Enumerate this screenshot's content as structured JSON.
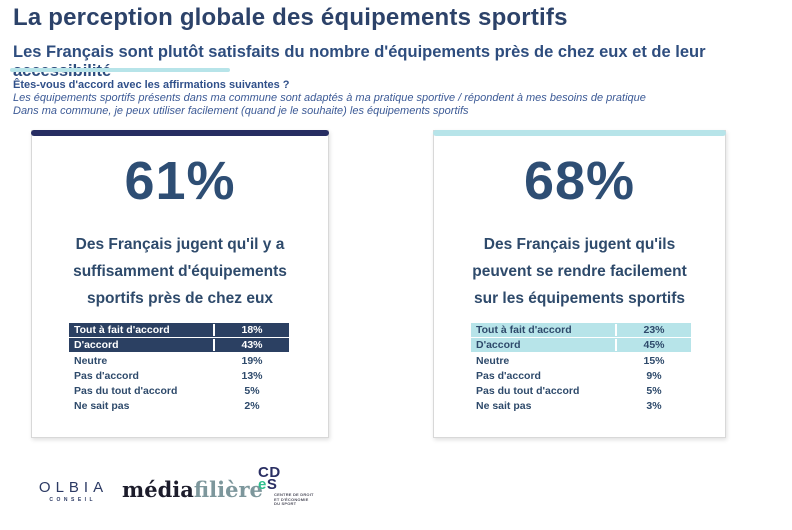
{
  "page": {
    "title": "La perception globale des équipements sportifs",
    "subtitle": "Les Français sont plutôt satisfaits du nombre d'équipements près de chez eux et de leur accessibilité",
    "intro": {
      "question": "Êtes-vous d'accord avec les affirmations suivantes ?",
      "statement1": "Les équipements sportifs présents dans ma commune sont adaptés à ma pratique sportive / répondent à mes besoins de pratique",
      "statement2": "Dans ma commune, je peux utiliser facilement (quand je le souhaite) les équipements sportifs"
    }
  },
  "colors": {
    "accent_navy": "#272d62",
    "accent_teal": "#b7e4e9",
    "highlight_navy": "#2b4062",
    "text_navy": "#2e4a6b"
  },
  "cards": [
    {
      "percent": "61%",
      "description_lines": [
        "Des Français jugent qu'il y a",
        "suffisamment d'équipements",
        "sportifs près de chez eux"
      ],
      "accent_color": "#272d62",
      "highlight_bg": "#2b4062",
      "highlight_text": "#ffffff",
      "table": {
        "rows": [
          {
            "label": "Tout à fait d'accord",
            "value": "18%",
            "highlight": true
          },
          {
            "label": "D'accord",
            "value": "43%",
            "highlight": true
          },
          {
            "label": "Neutre",
            "value": "19%",
            "highlight": false
          },
          {
            "label": "Pas d'accord",
            "value": "13%",
            "highlight": false
          },
          {
            "label": "Pas du tout d'accord",
            "value": "5%",
            "highlight": false
          },
          {
            "label": "Ne sait pas",
            "value": "2%",
            "highlight": false
          }
        ]
      }
    },
    {
      "percent": "68%",
      "description_lines": [
        "Des Français jugent qu'ils",
        "peuvent se rendre facilement",
        "sur les équipements sportifs"
      ],
      "accent_color": "#b7e4e9",
      "highlight_bg": "#b7e4e9",
      "highlight_text": "#2e4a6b",
      "table": {
        "rows": [
          {
            "label": "Tout à fait d'accord",
            "value": "23%",
            "highlight": true
          },
          {
            "label": "D'accord",
            "value": "45%",
            "highlight": true
          },
          {
            "label": "Neutre",
            "value": "15%",
            "highlight": false
          },
          {
            "label": "Pas d'accord",
            "value": "9%",
            "highlight": false
          },
          {
            "label": "Pas du tout d'accord",
            "value": "5%",
            "highlight": false
          },
          {
            "label": "Ne sait pas",
            "value": "3%",
            "highlight": false
          }
        ]
      }
    }
  ],
  "footer": {
    "olbia": {
      "name": "OLBIA",
      "tagline": "CONSEIL"
    },
    "mediafiliere": {
      "part1": "média",
      "part2": "filière"
    },
    "cdes": {
      "monogram_line1": "CD",
      "monogram_e": "e",
      "monogram_s": "S",
      "subtext_line1": "CENTRE DE DROIT",
      "subtext_line2": "ET D'ÉCONOMIE",
      "subtext_line3": "DU SPORT"
    }
  },
  "chart_data": {
    "type": "table",
    "title": "La perception globale des équipements sportifs",
    "question": "Êtes-vous d'accord avec les affirmations suivantes ?",
    "categories": [
      "Tout à fait d'accord",
      "D'accord",
      "Neutre",
      "Pas d'accord",
      "Pas du tout d'accord",
      "Ne sait pas"
    ],
    "series": [
      {
        "name": "Les équipements sportifs présents dans ma commune sont adaptés à ma pratique sportive / répondent à mes besoins de pratique",
        "headline_percent": 61,
        "values": [
          18,
          43,
          19,
          13,
          5,
          2
        ]
      },
      {
        "name": "Dans ma commune, je peux utiliser facilement (quand je le souhaite) les équipements sportifs",
        "headline_percent": 68,
        "values": [
          23,
          45,
          15,
          9,
          5,
          3
        ]
      }
    ]
  }
}
